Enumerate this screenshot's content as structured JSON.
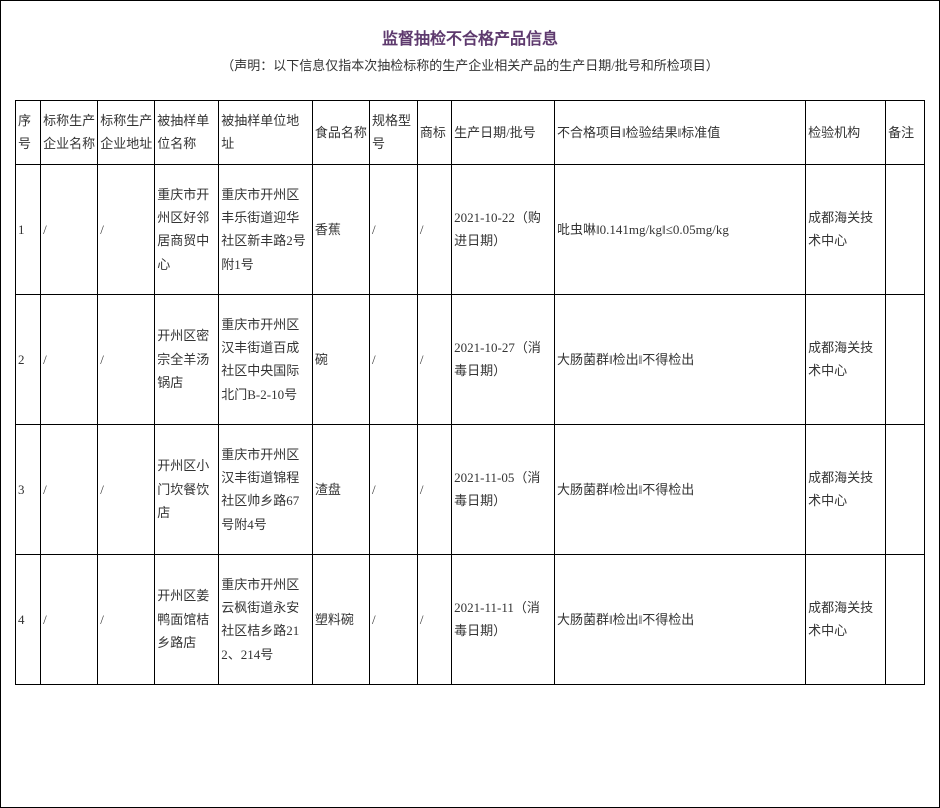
{
  "title": "监督抽检不合格产品信息",
  "subtitle": "（声明：以下信息仅指本次抽检标称的生产企业相关产品的生产日期/批号和所检项目）",
  "columns": [
    "序号",
    "标称生产企业名称",
    "标称生产企业地址",
    "被抽样单位名称",
    "被抽样单位地址",
    "食品名称",
    "规格型号",
    "商标",
    "生产日期/批号",
    "不合格项目‖检验结果‖标准值",
    "检验机构",
    "备注"
  ],
  "rows": [
    {
      "c0": "1",
      "c1": "/",
      "c2": "/",
      "c3": "重庆市开州区好邻居商贸中心",
      "c4": "重庆市开州区丰乐街道迎华社区新丰路2号附1号",
      "c5": "香蕉",
      "c6": "/",
      "c7": "/",
      "c8": "2021-10-22（购进日期）",
      "c9": "吡虫啉‖0.141mg/kg‖≤0.05mg/kg",
      "c10": "成都海关技术中心",
      "c11": ""
    },
    {
      "c0": "2",
      "c1": "/",
      "c2": "/",
      "c3": "开州区密宗全羊汤锅店",
      "c4": "重庆市开州区汉丰街道百成社区中央国际北门B-2-10号",
      "c5": "碗",
      "c6": "/",
      "c7": "/",
      "c8": "2021-10-27（消毒日期）",
      "c9": "大肠菌群‖检出‖不得检出",
      "c10": "成都海关技术中心",
      "c11": ""
    },
    {
      "c0": "3",
      "c1": "/",
      "c2": "/",
      "c3": "开州区小门坎餐饮店",
      "c4": "重庆市开州区汉丰街道锦程社区帅乡路67号附4号",
      "c5": "渣盘",
      "c6": "/",
      "c7": "/",
      "c8": "2021-11-05（消毒日期）",
      "c9": "大肠菌群‖检出‖不得检出",
      "c10": "成都海关技术中心",
      "c11": ""
    },
    {
      "c0": "4",
      "c1": "/",
      "c2": "/",
      "c3": "开州区姜鸭面馆桔乡路店",
      "c4": "重庆市开州区云枫街道永安社区桔乡路212、214号",
      "c5": "塑料碗",
      "c6": "/",
      "c7": "/",
      "c8": "2021-11-11（消毒日期）",
      "c9": "大肠菌群‖检出‖不得检出",
      "c10": "成都海关技术中心",
      "c11": ""
    }
  ]
}
